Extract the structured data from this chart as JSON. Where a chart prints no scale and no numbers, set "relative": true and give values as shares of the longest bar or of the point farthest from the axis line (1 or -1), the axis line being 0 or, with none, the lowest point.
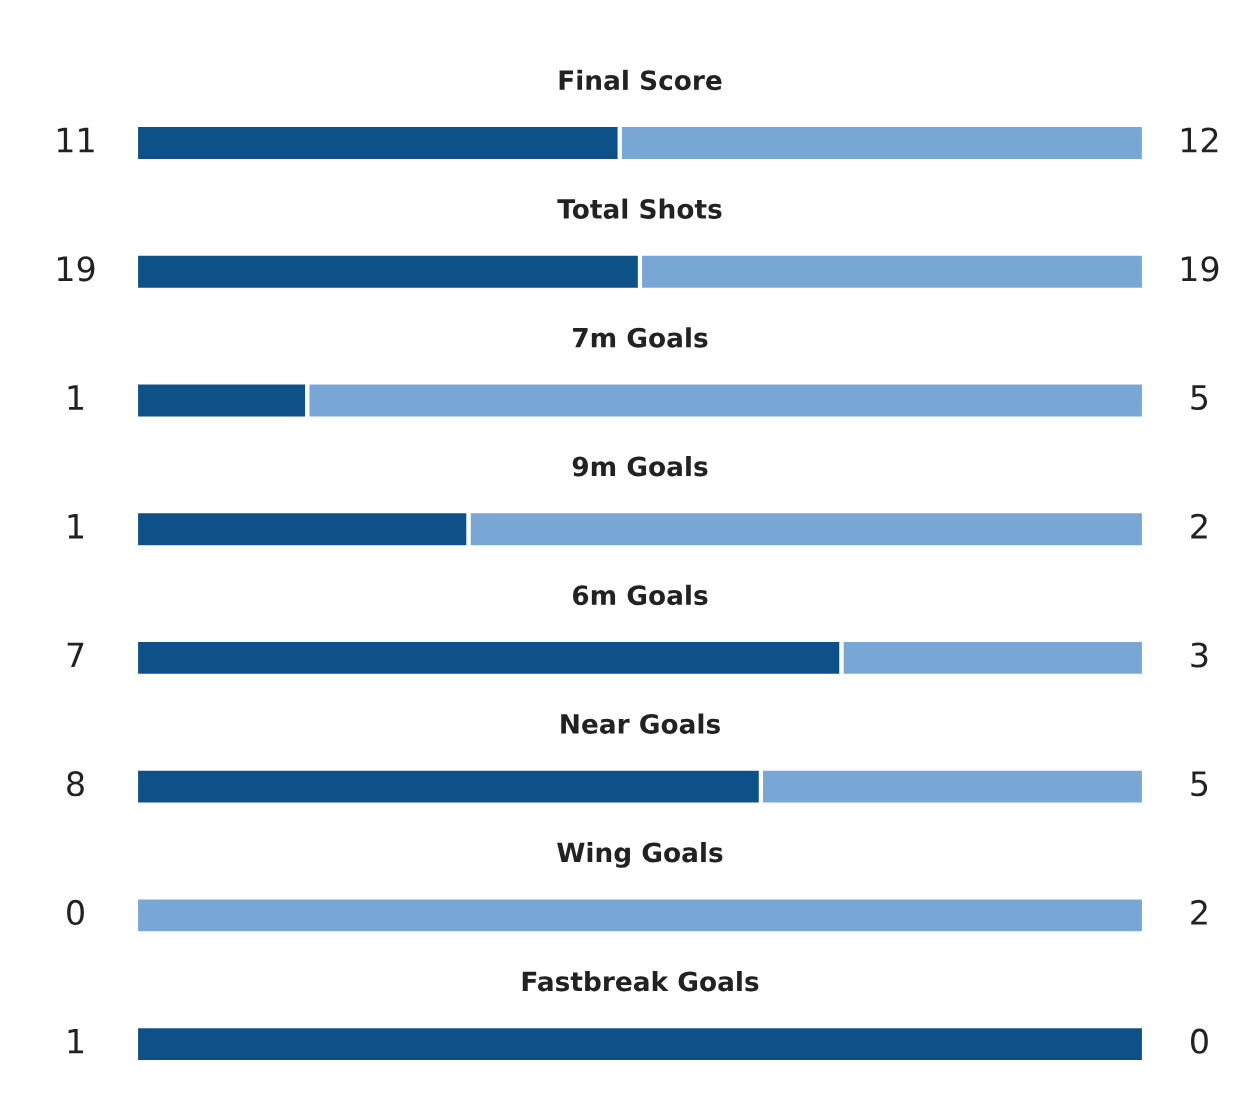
{
  "chart_data": {
    "type": "bar",
    "orientation": "horizontal",
    "stacked": true,
    "relative": true,
    "categories": [
      "Final Score",
      "Total Shots",
      "7m Goals",
      "9m Goals",
      "6m Goals",
      "Near Goals",
      "Wing Goals",
      "Fastbreak Goals"
    ],
    "series": [
      {
        "color": "#0e5189",
        "values": [
          0.48,
          0.5,
          0.17,
          0.33,
          0.7,
          0.62,
          0,
          1
        ]
      },
      {
        "color": "#78a7d6",
        "values": [
          0.52,
          0.5,
          0.83,
          0.67,
          0.3,
          0.38,
          1,
          0
        ]
      }
    ],
    "annotations": [
      "11",
      "12",
      "19",
      "19",
      "1",
      "5",
      "1",
      "2",
      "7",
      "3",
      "8",
      "5",
      "0",
      "2",
      "1",
      "0"
    ],
    "legend": false
  }
}
